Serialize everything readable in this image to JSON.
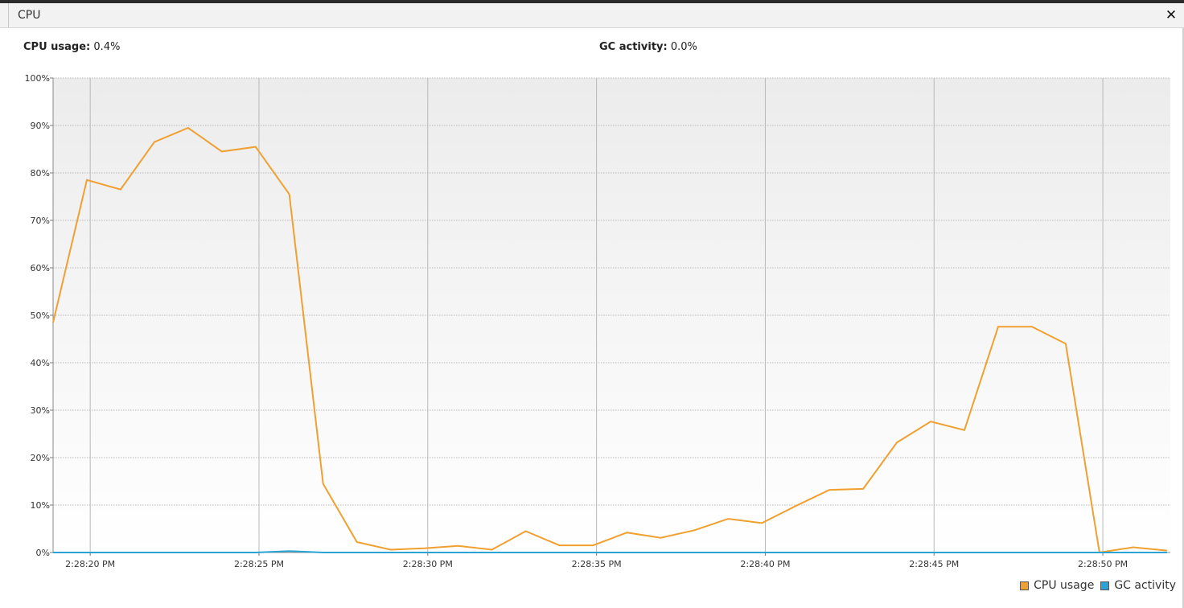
{
  "window": {
    "title": "CPU",
    "close_glyph": "✕"
  },
  "stats": {
    "cpu_label": "CPU usage:",
    "cpu_value": "0.4%",
    "gc_label": "GC activity:",
    "gc_value": "0.0%"
  },
  "colors": {
    "cpu": "#F0A030",
    "gc": "#2BA3D4",
    "plot_bg_top": "#ececec",
    "plot_bg_bottom": "#ffffff",
    "grid": "#b8b8b8"
  },
  "chart_data": {
    "type": "line",
    "x_unit": "seconds",
    "x_range": [
      "2:28:18.9 PM",
      "2:28:52.0 PM"
    ],
    "x_ticks": [
      "2:28:20 PM",
      "2:28:25 PM",
      "2:28:30 PM",
      "2:28:35 PM",
      "2:28:40 PM",
      "2:28:45 PM",
      "2:28:50 PM"
    ],
    "x_tick_times": [
      "2:28:20 PM",
      "2:28:25 PM",
      "2:28:30 PM",
      "2:28:35 PM",
      "2:28:40 PM",
      "2:28:45 PM",
      "2:28:50 PM"
    ],
    "y_ticks": [
      "0%",
      "10%",
      "20%",
      "30%",
      "40%",
      "50%",
      "60%",
      "70%",
      "80%",
      "90%",
      "100%"
    ],
    "ylim": [
      0,
      100
    ],
    "grid": true,
    "legend_position": "bottom-right",
    "series": [
      {
        "name": "CPU usage",
        "color": "#F0A030",
        "points": [
          [
            "2:28:18.9 PM",
            48.5
          ],
          [
            "2:28:19.9 PM",
            78.5
          ],
          [
            "2:28:20.9 PM",
            76.5
          ],
          [
            "2:28:21.9 PM",
            86.5
          ],
          [
            "2:28:22.9 PM",
            89.5
          ],
          [
            "2:28:23.9 PM",
            84.5
          ],
          [
            "2:28:24.9 PM",
            85.5
          ],
          [
            "2:28:25.9 PM",
            75.5
          ],
          [
            "2:28:26.9 PM",
            14.5
          ],
          [
            "2:28:27.9 PM",
            2.2
          ],
          [
            "2:28:28.9 PM",
            0.6
          ],
          [
            "2:28:29.9 PM",
            0.9
          ],
          [
            "2:28:30.9 PM",
            1.4
          ],
          [
            "2:28:31.9 PM",
            0.6
          ],
          [
            "2:28:32.9 PM",
            4.5
          ],
          [
            "2:28:33.9 PM",
            1.5
          ],
          [
            "2:28:34.9 PM",
            1.5
          ],
          [
            "2:28:35.9 PM",
            4.2
          ],
          [
            "2:28:36.9 PM",
            3.1
          ],
          [
            "2:28:37.9 PM",
            4.7
          ],
          [
            "2:28:38.9 PM",
            7.1
          ],
          [
            "2:28:39.9 PM",
            6.2
          ],
          [
            "2:28:40.9 PM",
            9.8
          ],
          [
            "2:28:41.9 PM",
            13.2
          ],
          [
            "2:28:42.9 PM",
            13.4
          ],
          [
            "2:28:43.9 PM",
            23.2
          ],
          [
            "2:28:44.9 PM",
            27.6
          ],
          [
            "2:28:45.9 PM",
            25.8
          ],
          [
            "2:28:46.9 PM",
            47.6
          ],
          [
            "2:28:47.9 PM",
            47.6
          ],
          [
            "2:28:48.9 PM",
            44.0
          ],
          [
            "2:28:49.9 PM",
            0.0
          ],
          [
            "2:28:50.9 PM",
            1.1
          ],
          [
            "2:28:51.9 PM",
            0.4
          ]
        ]
      },
      {
        "name": "GC activity",
        "color": "#2BA3D4",
        "points": [
          [
            "2:28:18.9 PM",
            0
          ],
          [
            "2:28:24.9 PM",
            0
          ],
          [
            "2:28:25.9 PM",
            0.3
          ],
          [
            "2:28:26.9 PM",
            0
          ],
          [
            "2:28:51.9 PM",
            0
          ]
        ]
      }
    ]
  }
}
